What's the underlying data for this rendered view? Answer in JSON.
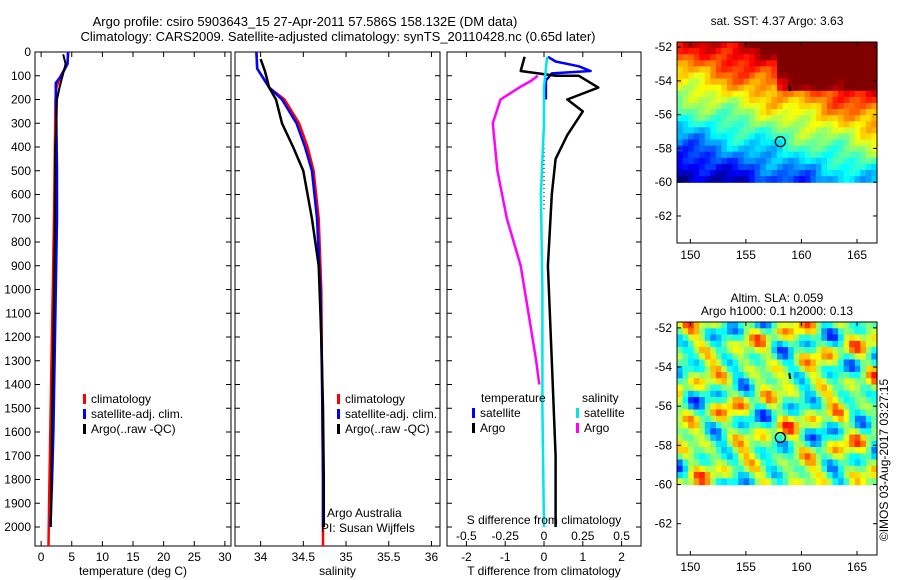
{
  "header": {
    "title1": "Argo profile: csiro 5903643_15 27-Apr-2011 57.586S 158.132E (DM data)",
    "title2": "Climatology: CARS2009. Satellite-adjusted climatology: synTS_20110428.nc (0.65d later)"
  },
  "credit": "©IMOS 03-Aug-2017 03:27:15",
  "colors": {
    "climatology": "#ff0000",
    "satellite": "#0000ff",
    "argo": "#000000",
    "sat_salinity": "#00e5e5",
    "argo_salinity": "#ff00ff"
  },
  "chart_data": [
    {
      "type": "line",
      "xlabel": "temperature (deg C)",
      "ylabel": "",
      "xlim": [
        -1,
        31
      ],
      "ylim": [
        2080,
        0
      ],
      "xticks": [
        0,
        5,
        10,
        15,
        20,
        25,
        30
      ],
      "yticks": [
        0,
        100,
        200,
        300,
        400,
        500,
        600,
        700,
        800,
        900,
        1000,
        1100,
        1200,
        1300,
        1400,
        1500,
        1600,
        1700,
        1800,
        1900,
        2000
      ],
      "legend": {
        "position": "lower-center",
        "entries": [
          "climatology",
          "satellite-adj. clim.",
          "Argo(..raw -QC)"
        ]
      },
      "series": [
        {
          "name": "climatology",
          "color": "#ff0000",
          "x": [
            4.4,
            4.3,
            3.2,
            2.5,
            2.35,
            2.3,
            2.2,
            2.1,
            1.9,
            1.7,
            1.5,
            1.3,
            1.2
          ],
          "y": [
            0,
            50,
            100,
            150,
            200,
            300,
            500,
            700,
            1000,
            1300,
            1600,
            1900,
            2080
          ]
        },
        {
          "name": "satellite-adj. clim.",
          "color": "#0000ff",
          "x": [
            4.4,
            4.3,
            3.3,
            2.4,
            2.4,
            2.5,
            2.6,
            2.6,
            2.4,
            2.2,
            2.0,
            1.8,
            1.6,
            1.5
          ],
          "y": [
            0,
            50,
            100,
            130,
            200,
            300,
            500,
            700,
            1000,
            1300,
            1600,
            1800,
            1950,
            2000
          ]
        },
        {
          "name": "Argo(..raw -QC)",
          "color": "#000000",
          "x": [
            3.6,
            4.0,
            3.5,
            3.0,
            2.6,
            2.5,
            2.3,
            2.3,
            2.2,
            2.1,
            2.0,
            1.8,
            1.6
          ],
          "y": [
            10,
            50,
            100,
            150,
            200,
            300,
            400,
            600,
            800,
            1000,
            1200,
            1500,
            2000
          ]
        }
      ]
    },
    {
      "type": "line",
      "xlabel": "salinity",
      "xlim": [
        33.7,
        36.1
      ],
      "ylim": [
        2080,
        0
      ],
      "xticks": [
        34,
        34.5,
        35,
        35.5,
        36
      ],
      "legend": {
        "position": "lower-center",
        "entries": [
          "climatology",
          "satellite-adj. clim.",
          "Argo(..raw -QC)"
        ]
      },
      "annotation": [
        "Argo Australia",
        "PI: Susan Wijffels"
      ],
      "series": [
        {
          "name": "climatology",
          "color": "#ff0000",
          "x": [
            33.95,
            33.96,
            34.1,
            34.28,
            34.45,
            34.55,
            34.62,
            34.68,
            34.71,
            34.72,
            34.73,
            34.73
          ],
          "y": [
            0,
            70,
            150,
            200,
            300,
            400,
            500,
            700,
            1000,
            1400,
            1800,
            2080
          ]
        },
        {
          "name": "satellite-adj. clim.",
          "color": "#0000ff",
          "x": [
            33.95,
            33.96,
            34.1,
            34.25,
            34.42,
            34.52,
            34.6,
            34.66,
            34.7,
            34.72,
            34.73,
            34.73
          ],
          "y": [
            0,
            70,
            150,
            200,
            300,
            400,
            500,
            700,
            1000,
            1400,
            1800,
            2000
          ]
        },
        {
          "name": "Argo(..raw -QC)",
          "color": "#000000",
          "x": [
            34.0,
            34.05,
            34.1,
            34.18,
            34.25,
            34.38,
            34.5,
            34.6,
            34.68,
            34.71,
            34.73,
            34.74,
            34.74
          ],
          "y": [
            30,
            80,
            150,
            200,
            300,
            400,
            500,
            700,
            900,
            1200,
            1500,
            1800,
            2000
          ]
        }
      ]
    },
    {
      "type": "line",
      "xlabel": "T difference from climatology",
      "xlabel2": "S difference from climatology",
      "xlim_T": [
        -2.5,
        2.5
      ],
      "xticks_T": [
        -2,
        -1,
        0,
        1,
        2
      ],
      "xticks_S": [
        -0.5,
        -0.25,
        0,
        0.25,
        0.5
      ],
      "legend": {
        "position": "lower-center",
        "headers": [
          "temperature",
          "salinity"
        ],
        "entries": [
          "satellite",
          "Argo",
          "satellite",
          "Argo"
        ]
      },
      "series": [
        {
          "name": "temperature satellite",
          "color": "#0000ff",
          "x": [
            0.1,
            0.3,
            0.9,
            1.2,
            0.2,
            0.05,
            0.05,
            0.05
          ],
          "y": [
            20,
            40,
            60,
            80,
            90,
            120,
            150,
            200
          ]
        },
        {
          "name": "temperature Argo",
          "color": "#000000",
          "x": [
            -0.5,
            -0.6,
            0.3,
            0.9,
            1.4,
            0.6,
            1.0,
            0.6,
            0.3,
            0.2,
            0.1,
            0.2,
            0.3,
            0.3
          ],
          "y": [
            20,
            80,
            100,
            100,
            150,
            200,
            250,
            350,
            450,
            600,
            900,
            1300,
            1700,
            2000
          ]
        },
        {
          "name": "salinity satellite",
          "color": "#00e5e5",
          "x": [
            0.02,
            0.0,
            0.0,
            -0.02,
            -0.01,
            -0.01,
            0.0
          ],
          "y": [
            20,
            150,
            300,
            600,
            1000,
            1500,
            2000
          ]
        },
        {
          "name": "salinity Argo",
          "color": "#ff00ff",
          "x": [
            -0.04,
            -0.08,
            -0.16,
            -0.28,
            -0.33,
            -0.3,
            -0.24,
            -0.15,
            -0.1,
            -0.05,
            -0.03
          ],
          "y": [
            100,
            120,
            150,
            200,
            300,
            500,
            700,
            900,
            1100,
            1300,
            1400
          ]
        }
      ]
    },
    {
      "type": "heatmap",
      "title": "sat. SST: 4.37 Argo: 3.63",
      "xlim": [
        148.8,
        166.8
      ],
      "ylim": [
        -63.6,
        -51.7
      ],
      "xticks": [
        150,
        155,
        160,
        165
      ],
      "yticks": [
        -52,
        -54,
        -56,
        -58,
        -60,
        -62
      ],
      "colormap": "jet",
      "data_extent_lat": [
        -60,
        -51.7
      ],
      "marker": {
        "lon": 158.1,
        "lat": -57.6
      }
    },
    {
      "type": "heatmap",
      "title": "Altim. SLA: 0.059",
      "subtitle": "Argo h1000: 0.1 h2000: 0.13",
      "xlim": [
        148.8,
        166.8
      ],
      "ylim": [
        -63.6,
        -51.7
      ],
      "xticks": [
        150,
        155,
        160,
        165
      ],
      "yticks": [
        -52,
        -54,
        -56,
        -58,
        -60,
        -62
      ],
      "colormap": "jet",
      "data_extent_lat": [
        -60,
        -51.7
      ],
      "marker": {
        "lon": 158.1,
        "lat": -57.6
      }
    }
  ]
}
